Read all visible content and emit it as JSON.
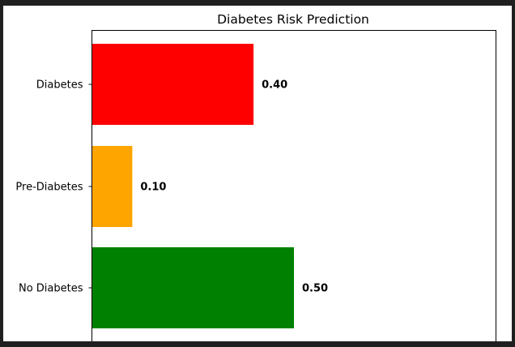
{
  "chart_data": {
    "type": "bar",
    "orientation": "horizontal",
    "title": "Diabetes Risk Prediction",
    "xlabel": "",
    "ylabel": "",
    "categories": [
      "No Diabetes",
      "Pre-Diabetes",
      "Diabetes"
    ],
    "values": [
      0.5,
      0.1,
      0.4
    ],
    "value_labels": [
      "0.50",
      "0.10",
      "0.40"
    ],
    "colors": [
      "#008000",
      "#ffa500",
      "#ff0000"
    ],
    "xlim": [
      0,
      1
    ],
    "grid": false,
    "legend": "none"
  }
}
